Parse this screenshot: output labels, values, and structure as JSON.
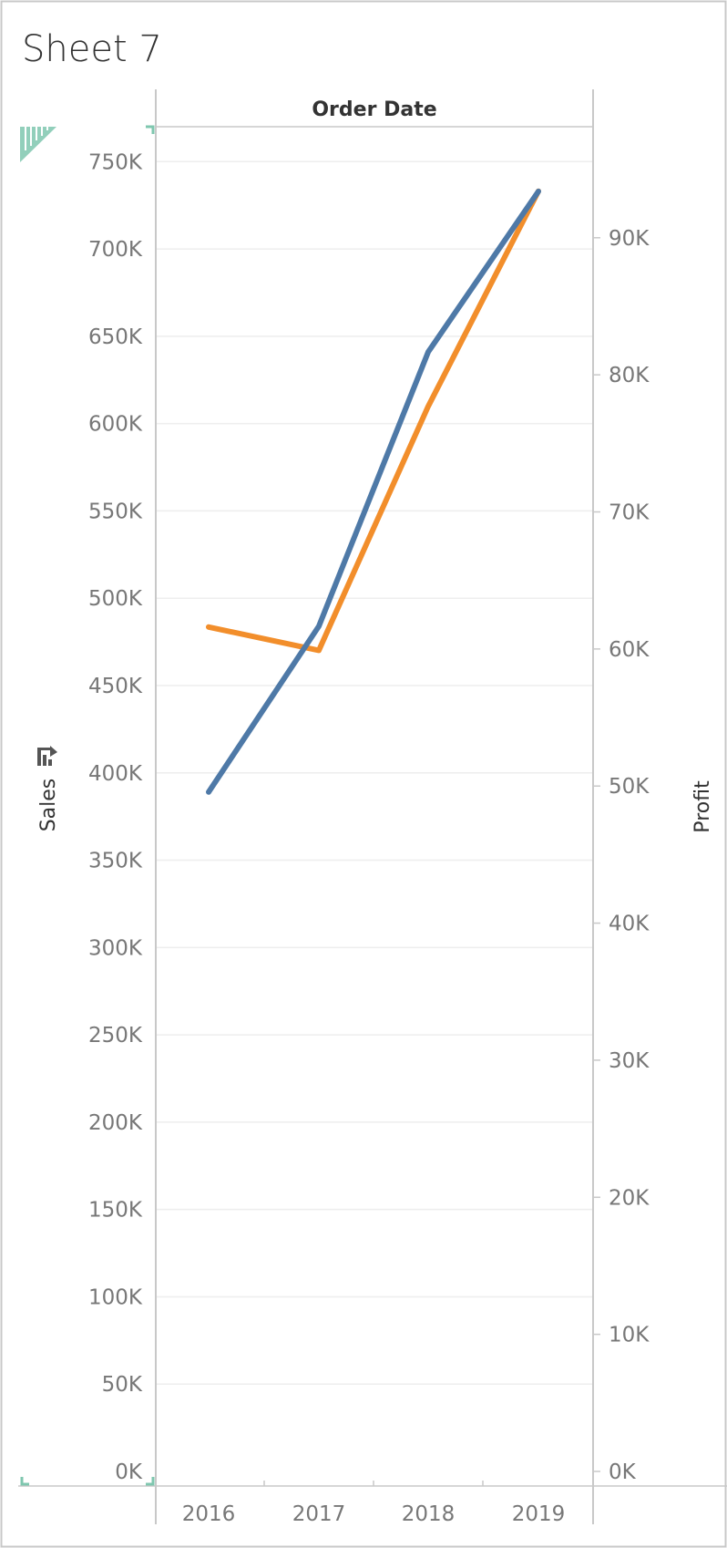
{
  "sheet": {
    "title": "Sheet 7"
  },
  "colors": {
    "sales_line": "#4E79A7",
    "profit_line": "#F28E2B",
    "gridline": "#EEEEEE",
    "axis_line": "#C8C8C8",
    "tick_text": "#777777",
    "selection_marker": "#7FC7AF"
  },
  "icons": {
    "sort": "sort-icon"
  },
  "chart_data": {
    "type": "line",
    "title": "",
    "column_header": "Order Date",
    "x": [
      "2016",
      "2017",
      "2018",
      "2019"
    ],
    "y_left": {
      "label": "Sales",
      "range": [
        0,
        770000
      ],
      "ticks": [
        0,
        50000,
        100000,
        150000,
        200000,
        250000,
        300000,
        350000,
        400000,
        450000,
        500000,
        550000,
        600000,
        650000,
        700000,
        750000
      ],
      "tick_labels": [
        "0K",
        "50K",
        "100K",
        "150K",
        "200K",
        "250K",
        "300K",
        "350K",
        "400K",
        "450K",
        "500K",
        "550K",
        "600K",
        "650K",
        "700K",
        "750K"
      ]
    },
    "y_right": {
      "label": "Profit",
      "range": [
        0,
        98100
      ],
      "ticks": [
        0,
        10000,
        20000,
        30000,
        40000,
        50000,
        60000,
        70000,
        80000,
        90000
      ],
      "tick_labels": [
        "0K",
        "10K",
        "20K",
        "30K",
        "40K",
        "50K",
        "60K",
        "70K",
        "80K",
        "90K"
      ]
    },
    "series": [
      {
        "name": "Sales",
        "axis": "left",
        "values": [
          389000,
          484000,
          641000,
          733000
        ]
      },
      {
        "name": "Profit",
        "axis": "right",
        "values": [
          61600,
          59900,
          77700,
          93400
        ]
      }
    ],
    "grid": true,
    "legend": "none"
  }
}
